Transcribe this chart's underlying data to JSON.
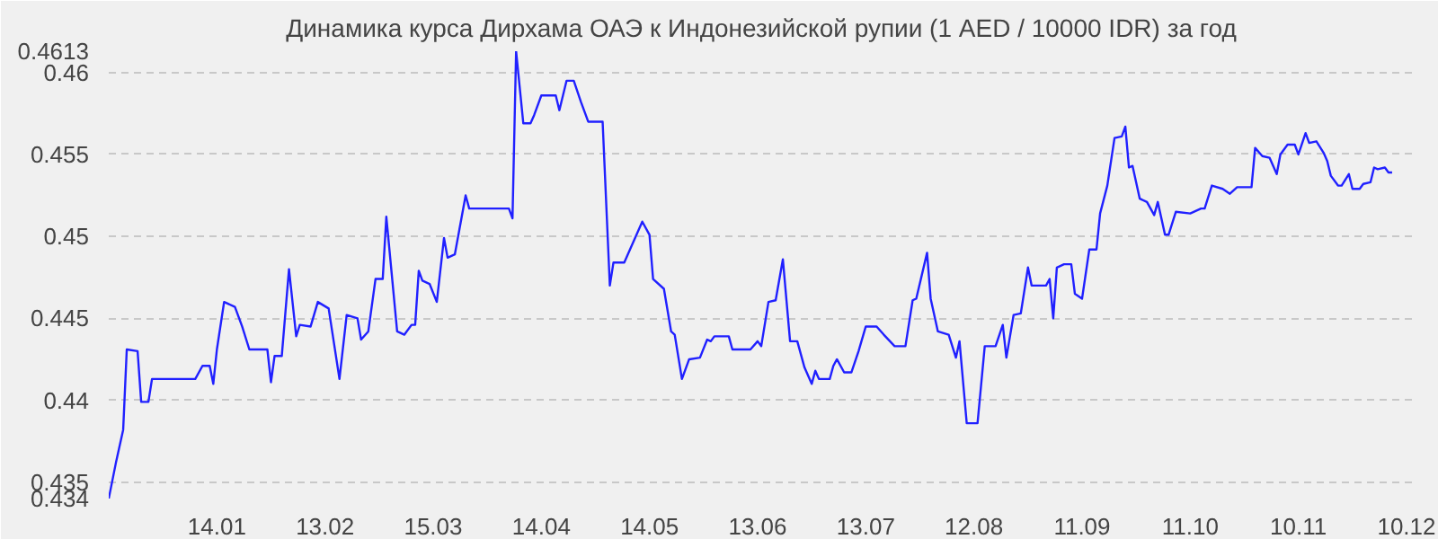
{
  "chart_data": {
    "type": "line",
    "title": "Динамика курса Дирхама ОАЭ к Индонезийской рупии (1 AED / 10000 IDR) за год",
    "x": [
      "2001-12-15",
      "2001-12-17",
      "2001-12-19",
      "2001-12-20",
      "2001-12-23",
      "2001-12-24",
      "2001-12-26",
      "2001-12-27",
      "2002-01-08",
      "2002-01-10",
      "2002-01-12",
      "2002-01-13",
      "2002-01-14",
      "2002-01-16",
      "2002-01-19",
      "2002-01-21",
      "2002-01-23",
      "2002-01-28",
      "2002-01-29",
      "2002-01-30",
      "2002-02-01",
      "2002-02-03",
      "2002-02-05",
      "2002-02-06",
      "2002-02-09",
      "2002-02-11",
      "2002-02-14",
      "2002-02-17",
      "2002-02-19",
      "2002-02-22",
      "2002-02-23",
      "2002-02-25",
      "2002-02-27",
      "2002-03-01",
      "2002-03-02",
      "2002-03-05",
      "2002-03-07",
      "2002-03-09",
      "2002-03-10",
      "2002-03-11",
      "2002-03-12",
      "2002-03-14",
      "2002-03-16",
      "2002-03-18",
      "2002-03-19",
      "2002-03-21",
      "2002-03-24",
      "2002-03-25",
      "2002-04-05",
      "2002-04-06",
      "2002-04-07",
      "2002-04-09",
      "2002-04-11",
      "2002-04-12",
      "2002-04-14",
      "2002-04-18",
      "2002-04-19",
      "2002-04-21",
      "2002-04-23",
      "2002-04-25",
      "2002-04-27",
      "2002-05-01",
      "2002-05-03",
      "2002-05-04",
      "2002-05-07",
      "2002-05-12",
      "2002-05-14",
      "2002-05-15",
      "2002-05-18",
      "2002-05-20",
      "2002-05-21",
      "2002-05-23",
      "2002-05-25",
      "2002-05-28",
      "2002-05-30",
      "2002-05-31",
      "2002-06-01",
      "2002-06-05",
      "2002-06-06",
      "2002-06-11",
      "2002-06-13",
      "2002-06-14",
      "2002-06-16",
      "2002-06-18",
      "2002-06-20",
      "2002-06-22",
      "2002-06-24",
      "2002-06-26",
      "2002-06-28",
      "2002-06-29",
      "2002-06-30",
      "2002-07-03",
      "2002-07-04",
      "2002-07-05",
      "2002-07-07",
      "2002-07-09",
      "2002-07-11",
      "2002-07-13",
      "2002-07-16",
      "2002-07-18",
      "2002-07-21",
      "2002-07-24",
      "2002-07-26",
      "2002-07-27",
      "2002-07-30",
      "2002-07-31",
      "2002-08-02",
      "2002-08-05",
      "2002-08-07",
      "2002-08-08",
      "2002-08-10",
      "2002-08-13",
      "2002-08-15",
      "2002-08-18",
      "2002-08-20",
      "2002-08-21",
      "2002-08-23",
      "2002-08-25",
      "2002-08-27",
      "2002-08-28",
      "2002-09-01",
      "2002-09-02",
      "2002-09-03",
      "2002-09-04",
      "2002-09-06",
      "2002-09-08",
      "2002-09-09",
      "2002-09-11",
      "2002-09-13",
      "2002-09-15",
      "2002-09-16",
      "2002-09-18",
      "2002-09-20",
      "2002-09-22",
      "2002-09-23",
      "2002-09-24",
      "2002-09-25",
      "2002-09-27",
      "2002-09-29",
      "2002-10-01",
      "2002-10-02",
      "2002-10-04",
      "2002-10-05",
      "2002-10-07",
      "2002-10-11",
      "2002-10-14",
      "2002-10-15",
      "2002-10-17",
      "2002-10-20",
      "2002-10-22",
      "2002-10-24",
      "2002-10-28",
      "2002-10-29",
      "2002-10-31",
      "2002-11-02",
      "2002-11-04",
      "2002-11-05",
      "2002-11-07",
      "2002-11-09",
      "2002-11-10",
      "2002-11-12",
      "2002-11-13",
      "2002-11-15",
      "2002-11-17",
      "2002-11-18",
      "2002-11-19",
      "2002-11-21",
      "2002-11-22",
      "2002-11-24",
      "2002-11-25",
      "2002-11-27",
      "2002-11-28",
      "2002-11-30",
      "2002-12-01",
      "2002-12-02",
      "2002-12-04",
      "2002-12-05",
      "2002-12-06"
    ],
    "series": [
      {
        "color": "#2020ff",
        "values": [
          0.434,
          0.4362,
          0.4382,
          0.4431,
          0.443,
          0.4399,
          0.4399,
          0.4413,
          0.4413,
          0.4421,
          0.4421,
          0.441,
          0.4431,
          0.446,
          0.4457,
          0.4445,
          0.4431,
          0.4431,
          0.4411,
          0.4427,
          0.4427,
          0.448,
          0.4439,
          0.4446,
          0.4445,
          0.446,
          0.4456,
          0.4413,
          0.4452,
          0.445,
          0.4437,
          0.4442,
          0.4474,
          0.4474,
          0.4512,
          0.4442,
          0.444,
          0.4446,
          0.4446,
          0.4479,
          0.4473,
          0.4471,
          0.446,
          0.4499,
          0.4487,
          0.4489,
          0.4525,
          0.4517,
          0.4517,
          0.4511,
          0.4613,
          0.4569,
          0.4569,
          0.4574,
          0.4586,
          0.4586,
          0.4577,
          0.4595,
          0.4595,
          0.4582,
          0.457,
          0.457,
          0.447,
          0.4484,
          0.4484,
          0.4509,
          0.4501,
          0.4474,
          0.4468,
          0.4442,
          0.444,
          0.4413,
          0.4425,
          0.4426,
          0.4437,
          0.4436,
          0.4439,
          0.4439,
          0.4431,
          0.4431,
          0.4436,
          0.4433,
          0.446,
          0.4461,
          0.4486,
          0.4436,
          0.4436,
          0.442,
          0.441,
          0.4418,
          0.4413,
          0.4413,
          0.4421,
          0.4425,
          0.4417,
          0.4417,
          0.443,
          0.4445,
          0.4445,
          0.444,
          0.4433,
          0.4433,
          0.4461,
          0.4462,
          0.449,
          0.4462,
          0.4442,
          0.444,
          0.4426,
          0.4436,
          0.4386,
          0.4386,
          0.4433,
          0.4433,
          0.4446,
          0.4426,
          0.4452,
          0.4453,
          0.4481,
          0.447,
          0.447,
          0.4474,
          0.445,
          0.4481,
          0.4483,
          0.4483,
          0.4465,
          0.4462,
          0.4492,
          0.4492,
          0.4514,
          0.4531,
          0.456,
          0.4561,
          0.4567,
          0.4542,
          0.4543,
          0.4523,
          0.4521,
          0.4513,
          0.4521,
          0.4501,
          0.4501,
          0.4515,
          0.4514,
          0.4517,
          0.4517,
          0.4531,
          0.4529,
          0.4526,
          0.453,
          0.453,
          0.4554,
          0.4549,
          0.4548,
          0.4538,
          0.455,
          0.4556,
          0.4556,
          0.455,
          0.4563,
          0.4557,
          0.4558,
          0.4551,
          0.4546,
          0.4537,
          0.4531,
          0.4531,
          0.4538,
          0.4529,
          0.4529,
          0.4532,
          0.4533,
          0.4542,
          0.4541,
          0.4542,
          0.4539,
          0.4539
        ]
      }
    ],
    "xlim": [
      "2001-12-15",
      "2002-12-12"
    ],
    "xticks": [
      {
        "value": "2002-01-14",
        "label": "14.01"
      },
      {
        "value": "2002-02-13",
        "label": "13.02"
      },
      {
        "value": "2002-03-15",
        "label": "15.03"
      },
      {
        "value": "2002-04-14",
        "label": "14.04"
      },
      {
        "value": "2002-05-14",
        "label": "14.05"
      },
      {
        "value": "2002-06-13",
        "label": "13.06"
      },
      {
        "value": "2002-07-13",
        "label": "13.07"
      },
      {
        "value": "2002-08-12",
        "label": "12.08"
      },
      {
        "value": "2002-09-11",
        "label": "11.09"
      },
      {
        "value": "2002-10-11",
        "label": "11.10"
      },
      {
        "value": "2002-11-10",
        "label": "10.11"
      },
      {
        "value": "2002-12-10",
        "label": "10.12"
      }
    ],
    "ylim": [
      0.434,
      0.4613
    ],
    "yticks": [
      0.434,
      0.435,
      0.44,
      0.445,
      0.45,
      0.455,
      0.46,
      0.4613
    ],
    "grid": "y",
    "line_style": "solid"
  }
}
